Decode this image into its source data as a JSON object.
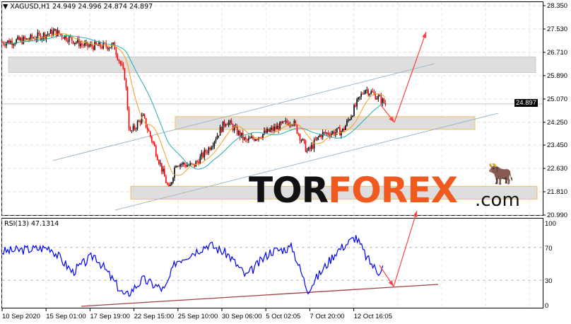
{
  "header": {
    "symbol": "XAGUSD,H1",
    "open": "24.949",
    "high": "24.996",
    "low": "24.874",
    "close": "24.897"
  },
  "rsi_label": "RSI(13) 47.1314",
  "current_price": "24.897",
  "logo": {
    "text_left": "TOR",
    "text_accent": "FOREX",
    "text_suffix": ".com",
    "accent_color": "#f05a1e"
  },
  "colors": {
    "bull": "#000000",
    "bear": "#ff0000",
    "ma_fast": "#f0a020",
    "ma_slow": "#20b0b0",
    "rsi": "#0000ff",
    "arrows": "#ff4040",
    "channel": "#a0b8c8",
    "rsi_trend": "#a04040"
  },
  "chart_data": [
    {
      "type": "candlestick",
      "title": "XAGUSD,H1",
      "price_axis": [
        "28.350",
        "27.530",
        "26.710",
        "25.890",
        "25.070",
        "24.250",
        "23.450",
        "22.630",
        "21.810",
        "20.990"
      ],
      "ylim": [
        20.99,
        28.35
      ],
      "time_axis": [
        "10 Sep 2020",
        "15 Sep 01:00",
        "17 Sep 19:00",
        "22 Sep 15:00",
        "25 Sep 10:00",
        "30 Sep 06:00",
        "5 Oct 02:05",
        "7 Oct 20:00",
        "12 Oct 16:05"
      ],
      "approx_close_path": [
        [
          0,
          27.06
        ],
        [
          0.55,
          27.15
        ],
        [
          1.2,
          27.43
        ],
        [
          1.9,
          26.93
        ],
        [
          2.55,
          26.93
        ],
        [
          2.8,
          25.81
        ],
        [
          2.9,
          23.83
        ],
        [
          3.2,
          24.45
        ],
        [
          3.45,
          23.45
        ],
        [
          3.8,
          21.84
        ],
        [
          3.95,
          22.83
        ],
        [
          4.35,
          22.71
        ],
        [
          4.7,
          23.33
        ],
        [
          5.1,
          24.32
        ],
        [
          5.55,
          23.58
        ],
        [
          6.1,
          23.95
        ],
        [
          6.6,
          24.32
        ],
        [
          6.95,
          23.2
        ],
        [
          7.25,
          23.83
        ],
        [
          7.75,
          23.95
        ],
        [
          8.25,
          25.44
        ],
        [
          8.5,
          25.19
        ],
        [
          8.72,
          24.9
        ]
      ],
      "zones": [
        [
          26.0,
          26.55
        ],
        [
          24.0,
          24.45
        ],
        [
          21.55,
          22.0
        ]
      ]
    },
    {
      "type": "line",
      "title": "RSI(13)",
      "yticks": [
        "100",
        "70",
        "30",
        "0"
      ],
      "ylim": [
        0,
        100
      ],
      "approx_path": [
        [
          0,
          65
        ],
        [
          1.1,
          70
        ],
        [
          1.6,
          40
        ],
        [
          2.1,
          61
        ],
        [
          2.8,
          10
        ],
        [
          3.2,
          31
        ],
        [
          3.7,
          18
        ],
        [
          3.95,
          53
        ],
        [
          4.7,
          74
        ],
        [
          5.15,
          61
        ],
        [
          5.55,
          35
        ],
        [
          6.1,
          65
        ],
        [
          6.6,
          70
        ],
        [
          6.95,
          18
        ],
        [
          7.6,
          65
        ],
        [
          8.05,
          83
        ],
        [
          8.3,
          57
        ],
        [
          8.55,
          40
        ],
        [
          8.66,
          47
        ]
      ]
    }
  ]
}
